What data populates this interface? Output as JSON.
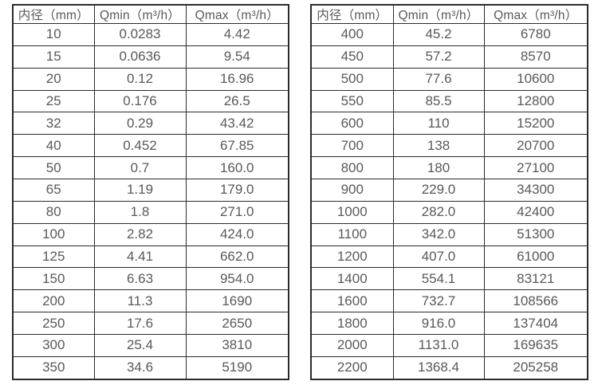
{
  "page": {
    "background": "#ffffff",
    "border_color": "#2b2b2b",
    "text_color": "#595959"
  },
  "tables": [
    {
      "name": "flow-table-small-diameters",
      "headers": [
        "内径（mm）",
        "Qmin（m³/h）",
        "Qmax（m³/h）"
      ],
      "rows": [
        [
          "10",
          "0.0283",
          "4.42"
        ],
        [
          "15",
          "0.0636",
          "9.54"
        ],
        [
          "20",
          "0.12",
          "16.96"
        ],
        [
          "25",
          "0.176",
          "26.5"
        ],
        [
          "32",
          "0.29",
          "43.42"
        ],
        [
          "40",
          "0.452",
          "67.85"
        ],
        [
          "50",
          "0.7",
          "160.0"
        ],
        [
          "65",
          "1.19",
          "179.0"
        ],
        [
          "80",
          "1.8",
          "271.0"
        ],
        [
          "100",
          "2.82",
          "424.0"
        ],
        [
          "125",
          "4.41",
          "662.0"
        ],
        [
          "150",
          "6.63",
          "954.0"
        ],
        [
          "200",
          "11.3",
          "1690"
        ],
        [
          "250",
          "17.6",
          "2650"
        ],
        [
          "300",
          "25.4",
          "3810"
        ],
        [
          "350",
          "34.6",
          "5190"
        ]
      ]
    },
    {
      "name": "flow-table-large-diameters",
      "headers": [
        "内径（mm）",
        "Qmin（m³/h）",
        "Qmax（m³/h）"
      ],
      "rows": [
        [
          "400",
          "45.2",
          "6780"
        ],
        [
          "450",
          "57.2",
          "8570"
        ],
        [
          "500",
          "77.6",
          "10600"
        ],
        [
          "550",
          "85.5",
          "12800"
        ],
        [
          "600",
          "110",
          "15200"
        ],
        [
          "700",
          "138",
          "20700"
        ],
        [
          "800",
          "180",
          "27100"
        ],
        [
          "900",
          "229.0",
          "34300"
        ],
        [
          "1000",
          "282.0",
          "42400"
        ],
        [
          "1100",
          "342.0",
          "51300"
        ],
        [
          "1200",
          "407.0",
          "61000"
        ],
        [
          "1400",
          "554.1",
          "83121"
        ],
        [
          "1600",
          "732.7",
          "108566"
        ],
        [
          "1800",
          "916.0",
          "137404"
        ],
        [
          "2000",
          "1131.0",
          "169635"
        ],
        [
          "2200",
          "1368.4",
          "205258"
        ]
      ]
    }
  ]
}
